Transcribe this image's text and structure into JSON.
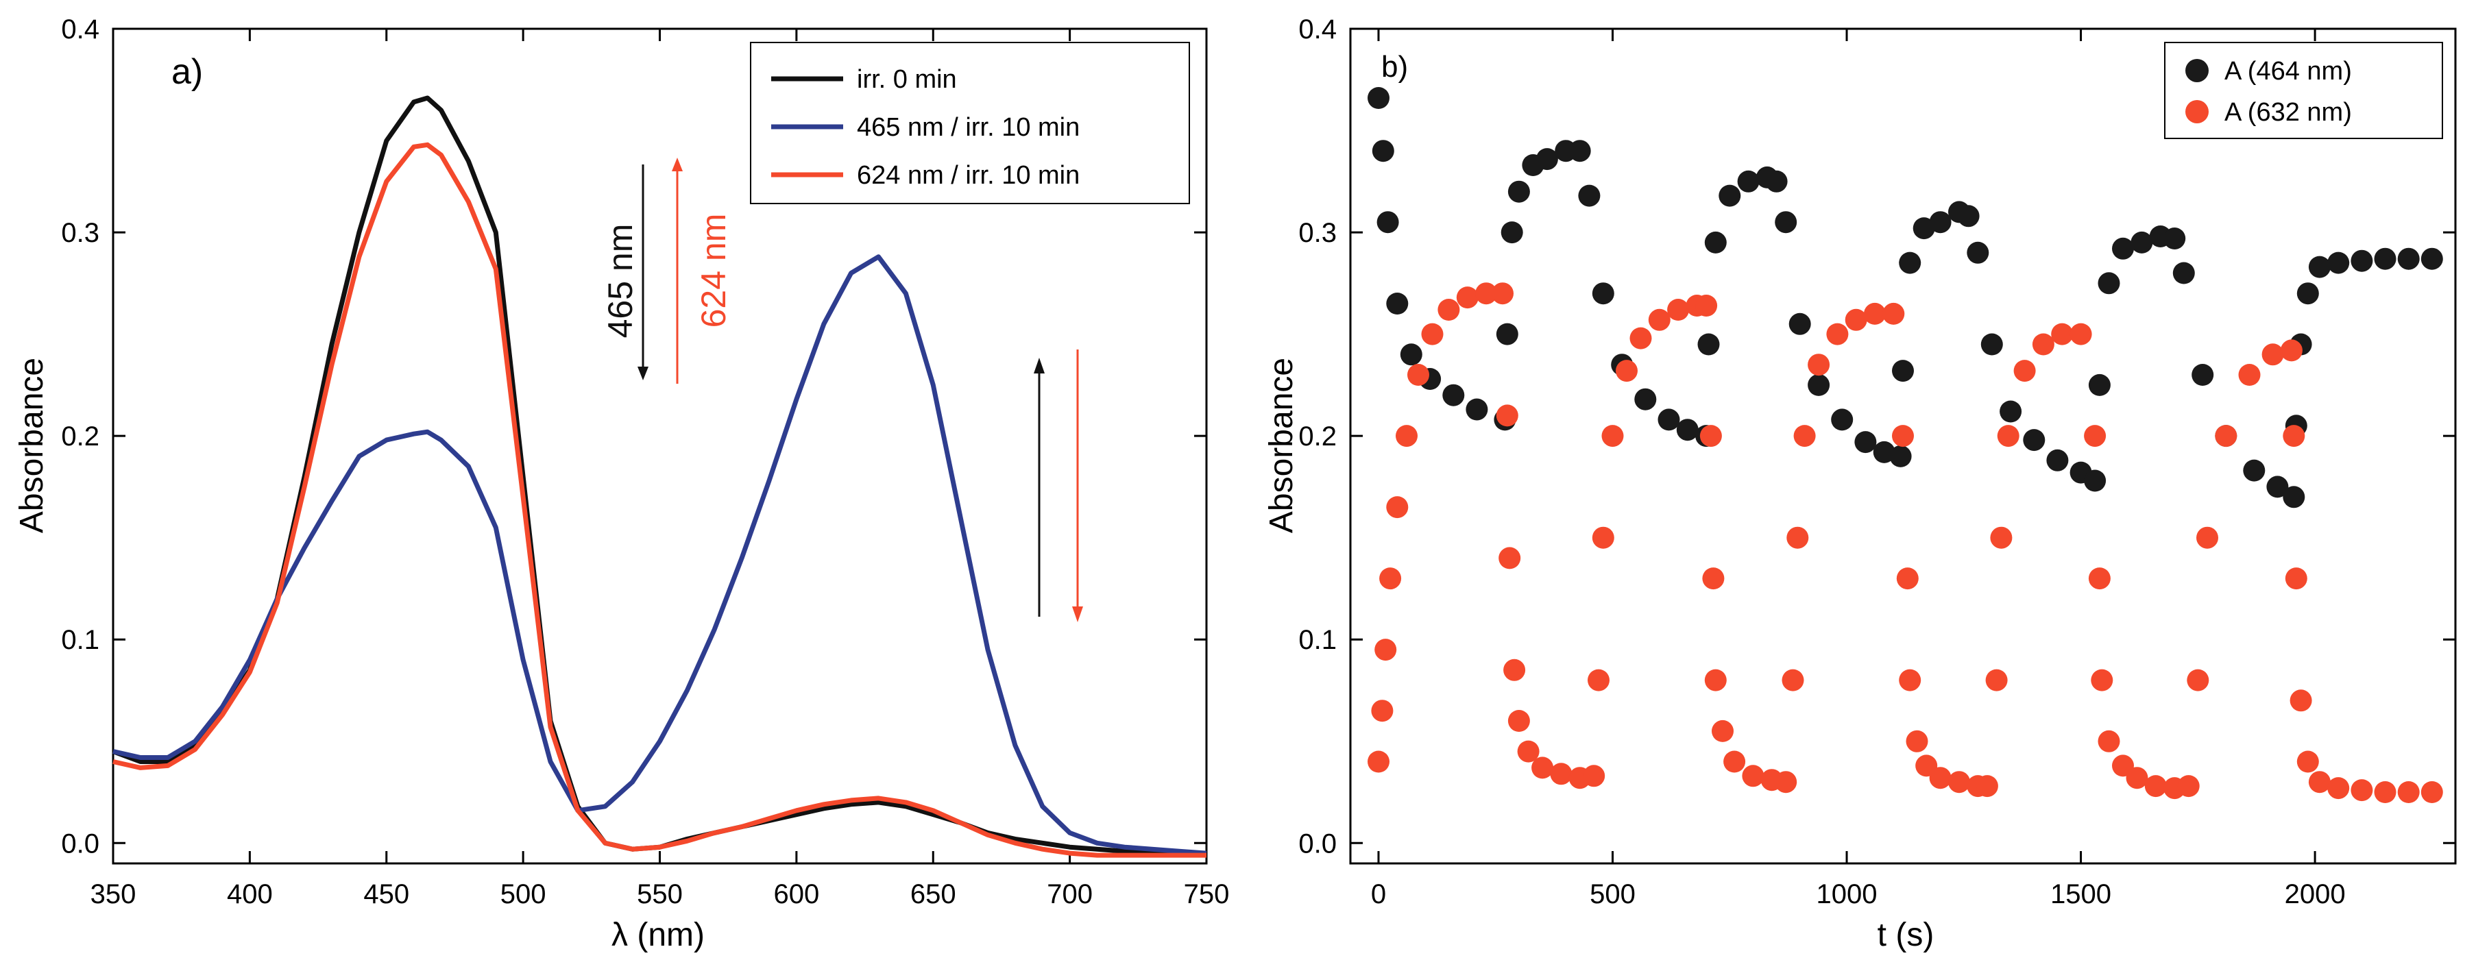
{
  "colors": {
    "black": "#111111",
    "blue": "#2e3d8f",
    "red": "#f4492c",
    "dark": "#1a1a1a"
  },
  "chart_data": [
    {
      "type": "line",
      "panel_label": "a)",
      "xlabel": "λ (nm)",
      "ylabel": "Absorbance",
      "xlim": [
        350,
        750
      ],
      "ylim": [
        -0.01,
        0.4
      ],
      "xticks": [
        350,
        400,
        450,
        500,
        550,
        600,
        650,
        700,
        750
      ],
      "yticks": [
        0.0,
        0.1,
        0.2,
        0.3,
        0.4
      ],
      "yticklabels": [
        "0.0",
        "0.1",
        "0.2",
        "0.3",
        "0.4"
      ],
      "legend_position": "top-right",
      "series": [
        {
          "name": "irr. 0 min",
          "color": "#111111",
          "x": [
            350,
            360,
            370,
            380,
            390,
            400,
            410,
            420,
            430,
            440,
            450,
            460,
            465,
            470,
            480,
            490,
            500,
            510,
            520,
            530,
            540,
            550,
            560,
            570,
            580,
            590,
            600,
            610,
            620,
            630,
            640,
            650,
            660,
            670,
            680,
            690,
            700,
            710,
            720,
            730,
            740,
            750
          ],
          "y": [
            0.045,
            0.04,
            0.04,
            0.048,
            0.065,
            0.085,
            0.12,
            0.18,
            0.245,
            0.3,
            0.345,
            0.364,
            0.366,
            0.36,
            0.335,
            0.3,
            0.18,
            0.06,
            0.018,
            0.0,
            -0.003,
            -0.002,
            0.002,
            0.005,
            0.008,
            0.011,
            0.014,
            0.017,
            0.019,
            0.02,
            0.018,
            0.014,
            0.01,
            0.005,
            0.002,
            0.0,
            -0.002,
            -0.003,
            -0.004,
            -0.004,
            -0.005,
            -0.005
          ]
        },
        {
          "name": "465 nm / irr. 10 min",
          "color": "#2e3d8f",
          "x": [
            350,
            360,
            370,
            380,
            390,
            400,
            410,
            420,
            430,
            440,
            450,
            460,
            465,
            470,
            480,
            490,
            500,
            510,
            520,
            530,
            540,
            550,
            560,
            570,
            580,
            590,
            600,
            610,
            620,
            630,
            640,
            650,
            660,
            670,
            680,
            690,
            700,
            710,
            720,
            730,
            740,
            750
          ],
          "y": [
            0.045,
            0.042,
            0.042,
            0.05,
            0.067,
            0.09,
            0.12,
            0.145,
            0.168,
            0.19,
            0.198,
            0.201,
            0.202,
            0.198,
            0.185,
            0.155,
            0.09,
            0.04,
            0.016,
            0.018,
            0.03,
            0.05,
            0.075,
            0.105,
            0.14,
            0.178,
            0.218,
            0.255,
            0.28,
            0.288,
            0.27,
            0.225,
            0.16,
            0.095,
            0.048,
            0.018,
            0.005,
            0.0,
            -0.002,
            -0.003,
            -0.004,
            -0.005
          ]
        },
        {
          "name": "624 nm / irr. 10 min",
          "color": "#f4492c",
          "x": [
            350,
            360,
            370,
            380,
            390,
            400,
            410,
            420,
            430,
            440,
            450,
            460,
            465,
            470,
            480,
            490,
            500,
            510,
            520,
            530,
            540,
            550,
            560,
            570,
            580,
            590,
            600,
            610,
            620,
            630,
            640,
            650,
            660,
            670,
            680,
            690,
            700,
            710,
            720,
            730,
            740,
            750
          ],
          "y": [
            0.04,
            0.037,
            0.038,
            0.046,
            0.063,
            0.084,
            0.118,
            0.175,
            0.235,
            0.288,
            0.325,
            0.342,
            0.343,
            0.338,
            0.315,
            0.282,
            0.17,
            0.057,
            0.016,
            0.0,
            -0.003,
            -0.002,
            0.001,
            0.005,
            0.008,
            0.012,
            0.016,
            0.019,
            0.021,
            0.022,
            0.02,
            0.016,
            0.01,
            0.004,
            0.0,
            -0.003,
            -0.005,
            -0.006,
            -0.006,
            -0.006,
            -0.006,
            -0.006
          ]
        }
      ],
      "annotations": [
        {
          "text": "465 nm",
          "color": "#111111",
          "direction": "down"
        },
        {
          "text": "624 nm",
          "color": "#f4492c",
          "direction": "up"
        },
        {
          "text": "",
          "color": "#111111",
          "direction": "up"
        },
        {
          "text": "",
          "color": "#f4492c",
          "direction": "down"
        }
      ]
    },
    {
      "type": "scatter",
      "panel_label": "b)",
      "xlabel": "t (s)",
      "ylabel": "Absorbance",
      "xlim": [
        -60,
        2300
      ],
      "ylim": [
        -0.01,
        0.4
      ],
      "xticks": [
        0,
        500,
        1000,
        1500,
        2000
      ],
      "yticks": [
        0.0,
        0.1,
        0.2,
        0.3,
        0.4
      ],
      "yticklabels": [
        "0.0",
        "0.1",
        "0.2",
        "0.3",
        "0.4"
      ],
      "legend_position": "top-right",
      "series": [
        {
          "name": "A (464 nm)",
          "color": "#1a1a1a",
          "x": [
            0,
            10,
            20,
            40,
            70,
            110,
            160,
            210,
            270,
            275,
            285,
            300,
            330,
            360,
            400,
            430,
            450,
            480,
            520,
            570,
            620,
            660,
            700,
            705,
            720,
            750,
            790,
            830,
            850,
            870,
            900,
            940,
            990,
            1040,
            1080,
            1115,
            1120,
            1135,
            1165,
            1200,
            1240,
            1260,
            1280,
            1310,
            1350,
            1400,
            1450,
            1500,
            1530,
            1540,
            1560,
            1590,
            1630,
            1670,
            1700,
            1720,
            1760,
            1810,
            1870,
            1920,
            1955,
            1960,
            1970,
            1985,
            2010,
            2050,
            2100,
            2150,
            2200,
            2250
          ],
          "y": [
            0.366,
            0.34,
            0.305,
            0.265,
            0.24,
            0.228,
            0.22,
            0.213,
            0.208,
            0.25,
            0.3,
            0.32,
            0.333,
            0.336,
            0.34,
            0.34,
            0.318,
            0.27,
            0.235,
            0.218,
            0.208,
            0.203,
            0.2,
            0.245,
            0.295,
            0.318,
            0.325,
            0.327,
            0.325,
            0.305,
            0.255,
            0.225,
            0.208,
            0.197,
            0.192,
            0.19,
            0.232,
            0.285,
            0.302,
            0.305,
            0.31,
            0.308,
            0.29,
            0.245,
            0.212,
            0.198,
            0.188,
            0.182,
            0.178,
            0.225,
            0.275,
            0.292,
            0.295,
            0.298,
            0.297,
            0.28,
            0.23,
            0.2,
            0.183,
            0.175,
            0.17,
            0.205,
            0.245,
            0.27,
            0.283,
            0.285,
            0.286,
            0.287,
            0.287,
            0.287
          ]
        },
        {
          "name": "A (632 nm)",
          "color": "#f4492c",
          "x": [
            0,
            8,
            15,
            25,
            40,
            60,
            85,
            115,
            150,
            190,
            230,
            265,
            275,
            280,
            290,
            300,
            320,
            350,
            390,
            430,
            460,
            470,
            480,
            500,
            530,
            560,
            600,
            640,
            680,
            700,
            710,
            715,
            720,
            735,
            760,
            800,
            840,
            870,
            885,
            895,
            910,
            940,
            980,
            1020,
            1060,
            1100,
            1120,
            1130,
            1135,
            1150,
            1170,
            1200,
            1240,
            1280,
            1300,
            1320,
            1330,
            1345,
            1380,
            1420,
            1460,
            1500,
            1530,
            1540,
            1545,
            1560,
            1590,
            1620,
            1660,
            1700,
            1730,
            1750,
            1770,
            1810,
            1860,
            1910,
            1950,
            1955,
            1960,
            1970,
            1985,
            2010,
            2050,
            2100,
            2150,
            2200,
            2250
          ],
          "y": [
            0.04,
            0.065,
            0.095,
            0.13,
            0.165,
            0.2,
            0.23,
            0.25,
            0.262,
            0.268,
            0.27,
            0.27,
            0.21,
            0.14,
            0.085,
            0.06,
            0.045,
            0.037,
            0.034,
            0.032,
            0.033,
            0.08,
            0.15,
            0.2,
            0.232,
            0.248,
            0.257,
            0.262,
            0.264,
            0.264,
            0.2,
            0.13,
            0.08,
            0.055,
            0.04,
            0.033,
            0.031,
            0.03,
            0.08,
            0.15,
            0.2,
            0.235,
            0.25,
            0.257,
            0.26,
            0.26,
            0.2,
            0.13,
            0.08,
            0.05,
            0.038,
            0.032,
            0.03,
            0.028,
            0.028,
            0.08,
            0.15,
            0.2,
            0.232,
            0.245,
            0.25,
            0.25,
            0.2,
            0.13,
            0.08,
            0.05,
            0.038,
            0.032,
            0.028,
            0.027,
            0.028,
            0.08,
            0.15,
            0.2,
            0.23,
            0.24,
            0.242,
            0.2,
            0.13,
            0.07,
            0.04,
            0.03,
            0.027,
            0.026,
            0.025,
            0.025,
            0.025
          ]
        }
      ]
    }
  ]
}
